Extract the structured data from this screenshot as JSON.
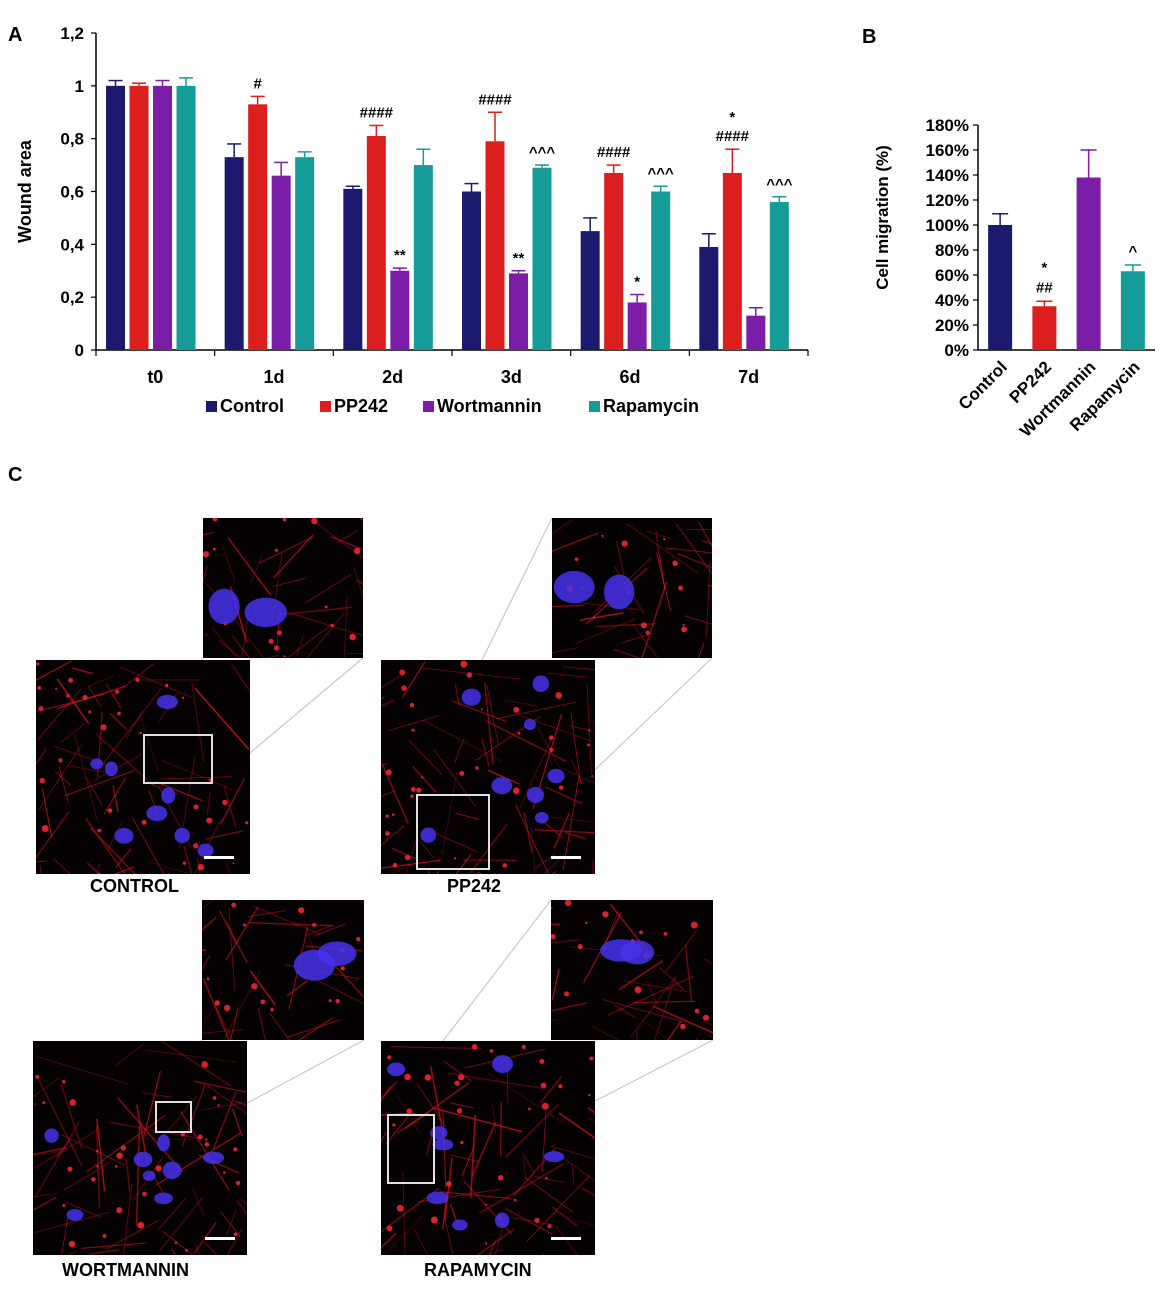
{
  "panels": {
    "a": "A",
    "b": "B",
    "c": "C"
  },
  "colors": {
    "control": "#1b1a6e",
    "pp242": "#dc1e1e",
    "wortmannin": "#7a1ea8",
    "rapamycin": "#169c98"
  },
  "chart_data": [
    {
      "type": "bar",
      "ylabel": "Wound area",
      "ylim": [
        0,
        1.2
      ],
      "yticks": [
        "0",
        "0,2",
        "0,4",
        "0,6",
        "0,8",
        "1",
        "1,2"
      ],
      "categories": [
        "t0",
        "1d",
        "2d",
        "3d",
        "6d",
        "7d"
      ],
      "legend_position": "bottom",
      "series": [
        {
          "name": "Control",
          "color": "#1b1a6e",
          "values": [
            1.0,
            0.73,
            0.61,
            0.6,
            0.45,
            0.39
          ],
          "errors": [
            0.02,
            0.05,
            0.01,
            0.03,
            0.05,
            0.05
          ]
        },
        {
          "name": "PP242",
          "color": "#dc1e1e",
          "values": [
            1.0,
            0.93,
            0.81,
            0.79,
            0.67,
            0.67
          ],
          "errors": [
            0.01,
            0.03,
            0.04,
            0.11,
            0.03,
            0.09
          ]
        },
        {
          "name": "Wortmannin",
          "color": "#7a1ea8",
          "values": [
            1.0,
            0.66,
            0.3,
            0.29,
            0.18,
            0.13
          ],
          "errors": [
            0.02,
            0.05,
            0.01,
            0.01,
            0.03,
            0.03
          ]
        },
        {
          "name": "Rapamycin",
          "color": "#169c98",
          "values": [
            1.0,
            0.73,
            0.7,
            0.69,
            0.6,
            0.56
          ],
          "errors": [
            0.03,
            0.02,
            0.06,
            0.01,
            0.02,
            0.02
          ]
        }
      ],
      "annotations": [
        {
          "category": 1,
          "series": 1,
          "lines": [
            "#"
          ]
        },
        {
          "category": 2,
          "series": 1,
          "lines": [
            "####"
          ]
        },
        {
          "category": 2,
          "series": 2,
          "lines": [
            "**"
          ]
        },
        {
          "category": 3,
          "series": 1,
          "lines": [
            "####"
          ]
        },
        {
          "category": 3,
          "series": 2,
          "lines": [
            "**"
          ]
        },
        {
          "category": 3,
          "series": 3,
          "lines": [
            "^^^"
          ]
        },
        {
          "category": 4,
          "series": 1,
          "lines": [
            "####"
          ]
        },
        {
          "category": 4,
          "series": 2,
          "lines": [
            "*"
          ]
        },
        {
          "category": 4,
          "series": 3,
          "lines": [
            "^^^"
          ]
        },
        {
          "category": 5,
          "series": 1,
          "lines": [
            "*",
            "####"
          ]
        },
        {
          "category": 5,
          "series": 3,
          "lines": [
            "^^^"
          ]
        }
      ]
    },
    {
      "type": "bar",
      "ylabel": "Cell migration (%)",
      "ylim": [
        0,
        180
      ],
      "yticks": [
        "0%",
        "20%",
        "40%",
        "60%",
        "80%",
        "100%",
        "120%",
        "140%",
        "160%",
        "180%"
      ],
      "categories": [
        "Control",
        "PP242",
        "Wortmannin",
        "Rapamycin"
      ],
      "values": [
        100,
        35,
        138,
        63
      ],
      "errors": [
        9,
        4,
        22,
        5
      ],
      "colors": [
        "#1b1a6e",
        "#dc1e1e",
        "#7a1ea8",
        "#169c98"
      ],
      "annotations": [
        {
          "category": 1,
          "lines": [
            "*",
            "##"
          ]
        },
        {
          "category": 3,
          "lines": [
            "^"
          ]
        }
      ]
    }
  ],
  "micrographs": {
    "labels": [
      "CONTROL",
      "PP242",
      "WORTMANNIN",
      "RAPAMYCIN"
    ]
  }
}
